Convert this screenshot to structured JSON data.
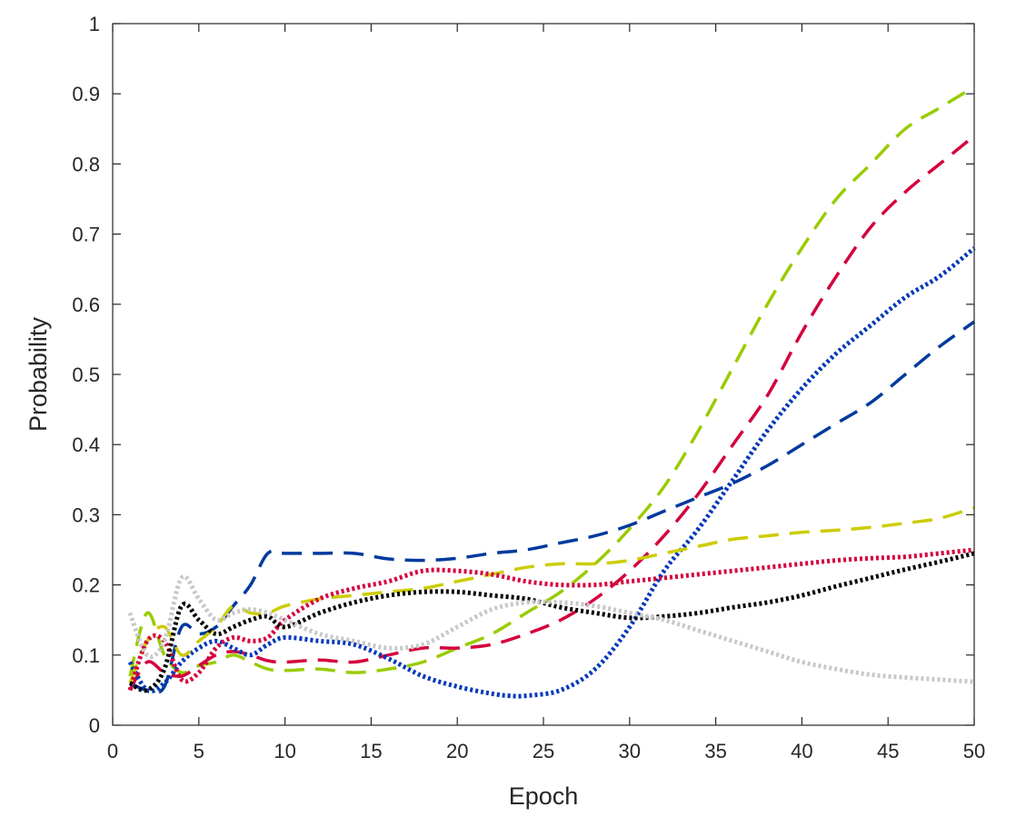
{
  "chart_data": {
    "type": "line",
    "title": "",
    "xlabel": "Epoch",
    "ylabel": "Probability",
    "xlim": [
      0,
      50
    ],
    "ylim": [
      0,
      1
    ],
    "xticks": [
      0,
      5,
      10,
      15,
      20,
      25,
      30,
      35,
      40,
      45,
      50
    ],
    "yticks": [
      0,
      0.1,
      0.2,
      0.3,
      0.4,
      0.5,
      0.6,
      0.7,
      0.8,
      0.9,
      1
    ],
    "xtick_labels": [
      "0",
      "5",
      "10",
      "15",
      "20",
      "25",
      "30",
      "35",
      "40",
      "45",
      "50"
    ],
    "ytick_labels": [
      "0",
      "0.1",
      "0.2",
      "0.3",
      "0.4",
      "0.5",
      "0.6",
      "0.7",
      "0.8",
      "0.9",
      "1"
    ],
    "grid": false,
    "series": [
      {
        "name": "green-dashed",
        "color": "#99cc00",
        "style": "dashed",
        "x": [
          1,
          2,
          3,
          4,
          5,
          6,
          7,
          8,
          9,
          10,
          12,
          14,
          16,
          18,
          20,
          22,
          24,
          26,
          28,
          30,
          32,
          34,
          36,
          38,
          40,
          42,
          44,
          46,
          48,
          50
        ],
        "y": [
          0.07,
          0.16,
          0.1,
          0.075,
          0.085,
          0.09,
          0.1,
          0.09,
          0.08,
          0.078,
          0.08,
          0.075,
          0.08,
          0.09,
          0.11,
          0.13,
          0.16,
          0.19,
          0.23,
          0.28,
          0.34,
          0.42,
          0.51,
          0.6,
          0.68,
          0.75,
          0.8,
          0.85,
          0.88,
          0.91
        ]
      },
      {
        "name": "red-dashed",
        "color": "#d4003c",
        "style": "dashed",
        "x": [
          1,
          2,
          3,
          4,
          5,
          6,
          7,
          8,
          9,
          10,
          12,
          14,
          16,
          18,
          20,
          22,
          24,
          26,
          28,
          30,
          32,
          34,
          36,
          38,
          40,
          42,
          44,
          46,
          48,
          50
        ],
        "y": [
          0.05,
          0.09,
          0.075,
          0.07,
          0.085,
          0.1,
          0.105,
          0.1,
          0.092,
          0.09,
          0.093,
          0.09,
          0.1,
          0.11,
          0.11,
          0.115,
          0.13,
          0.15,
          0.18,
          0.22,
          0.27,
          0.33,
          0.4,
          0.47,
          0.56,
          0.64,
          0.71,
          0.76,
          0.8,
          0.84
        ]
      },
      {
        "name": "blue-dotted",
        "color": "#0038b8",
        "style": "dotted",
        "x": [
          1,
          2,
          3,
          4,
          5,
          6,
          7,
          8,
          9,
          10,
          12,
          14,
          16,
          18,
          20,
          22,
          23,
          24,
          26,
          28,
          30,
          32,
          34,
          36,
          38,
          40,
          42,
          44,
          46,
          48,
          50
        ],
        "y": [
          0.09,
          0.05,
          0.06,
          0.09,
          0.11,
          0.12,
          0.11,
          0.1,
          0.115,
          0.125,
          0.12,
          0.115,
          0.095,
          0.07,
          0.055,
          0.045,
          0.042,
          0.042,
          0.05,
          0.08,
          0.14,
          0.22,
          0.28,
          0.35,
          0.42,
          0.48,
          0.53,
          0.57,
          0.61,
          0.64,
          0.68
        ]
      },
      {
        "name": "navy-dashed",
        "color": "#003a9e",
        "style": "dashed",
        "x": [
          1,
          2,
          3,
          4,
          5,
          6,
          7,
          8,
          9,
          10,
          12,
          14,
          16,
          18,
          20,
          22,
          24,
          26,
          28,
          30,
          32,
          34,
          36,
          38,
          40,
          42,
          44,
          46,
          48,
          50
        ],
        "y": [
          0.06,
          0.05,
          0.055,
          0.14,
          0.13,
          0.14,
          0.17,
          0.2,
          0.245,
          0.245,
          0.245,
          0.245,
          0.237,
          0.235,
          0.238,
          0.245,
          0.25,
          0.26,
          0.27,
          0.285,
          0.305,
          0.325,
          0.345,
          0.37,
          0.4,
          0.43,
          0.46,
          0.5,
          0.54,
          0.575
        ]
      },
      {
        "name": "yellow-dashed",
        "color": "#cccc00",
        "style": "dashed",
        "x": [
          1,
          2,
          3,
          4,
          5,
          6,
          7,
          8,
          9,
          10,
          12,
          14,
          16,
          18,
          20,
          22,
          24,
          26,
          28,
          30,
          32,
          34,
          36,
          38,
          40,
          42,
          44,
          46,
          48,
          50
        ],
        "y": [
          0.06,
          0.12,
          0.14,
          0.1,
          0.12,
          0.14,
          0.17,
          0.16,
          0.16,
          0.17,
          0.18,
          0.185,
          0.19,
          0.195,
          0.205,
          0.215,
          0.225,
          0.23,
          0.23,
          0.235,
          0.245,
          0.255,
          0.265,
          0.27,
          0.275,
          0.278,
          0.282,
          0.288,
          0.295,
          0.31
        ]
      },
      {
        "name": "crimson-dotted",
        "color": "#d4003c",
        "style": "dotted",
        "x": [
          1,
          2,
          3,
          4,
          5,
          6,
          7,
          8,
          9,
          10,
          12,
          14,
          16,
          18,
          20,
          22,
          24,
          26,
          28,
          30,
          32,
          34,
          36,
          38,
          40,
          42,
          44,
          46,
          48,
          50
        ],
        "y": [
          0.05,
          0.12,
          0.12,
          0.065,
          0.075,
          0.11,
          0.125,
          0.12,
          0.125,
          0.15,
          0.18,
          0.195,
          0.205,
          0.22,
          0.22,
          0.215,
          0.205,
          0.2,
          0.2,
          0.205,
          0.21,
          0.215,
          0.22,
          0.225,
          0.23,
          0.235,
          0.238,
          0.24,
          0.245,
          0.25
        ]
      },
      {
        "name": "black-dotted",
        "color": "#000000",
        "style": "dotted",
        "x": [
          1,
          2,
          3,
          4,
          5,
          6,
          7,
          8,
          9,
          10,
          12,
          14,
          16,
          18,
          20,
          22,
          24,
          26,
          28,
          30,
          32,
          34,
          36,
          38,
          40,
          42,
          44,
          46,
          48,
          50
        ],
        "y": [
          0.06,
          0.05,
          0.08,
          0.17,
          0.15,
          0.13,
          0.14,
          0.15,
          0.155,
          0.14,
          0.16,
          0.175,
          0.185,
          0.19,
          0.19,
          0.185,
          0.18,
          0.168,
          0.16,
          0.153,
          0.155,
          0.16,
          0.168,
          0.175,
          0.185,
          0.198,
          0.21,
          0.222,
          0.233,
          0.245
        ]
      },
      {
        "name": "gray-dotted",
        "color": "#c8c8c8",
        "style": "dotted",
        "x": [
          1,
          2,
          3,
          4,
          5,
          6,
          7,
          8,
          9,
          10,
          12,
          14,
          16,
          18,
          20,
          22,
          24,
          26,
          28,
          30,
          32,
          34,
          36,
          38,
          40,
          42,
          44,
          46,
          48,
          50
        ],
        "y": [
          0.16,
          0.1,
          0.12,
          0.21,
          0.18,
          0.15,
          0.16,
          0.165,
          0.16,
          0.15,
          0.13,
          0.12,
          0.11,
          0.115,
          0.14,
          0.165,
          0.175,
          0.175,
          0.17,
          0.16,
          0.15,
          0.135,
          0.12,
          0.105,
          0.09,
          0.08,
          0.072,
          0.068,
          0.065,
          0.062
        ]
      }
    ]
  }
}
